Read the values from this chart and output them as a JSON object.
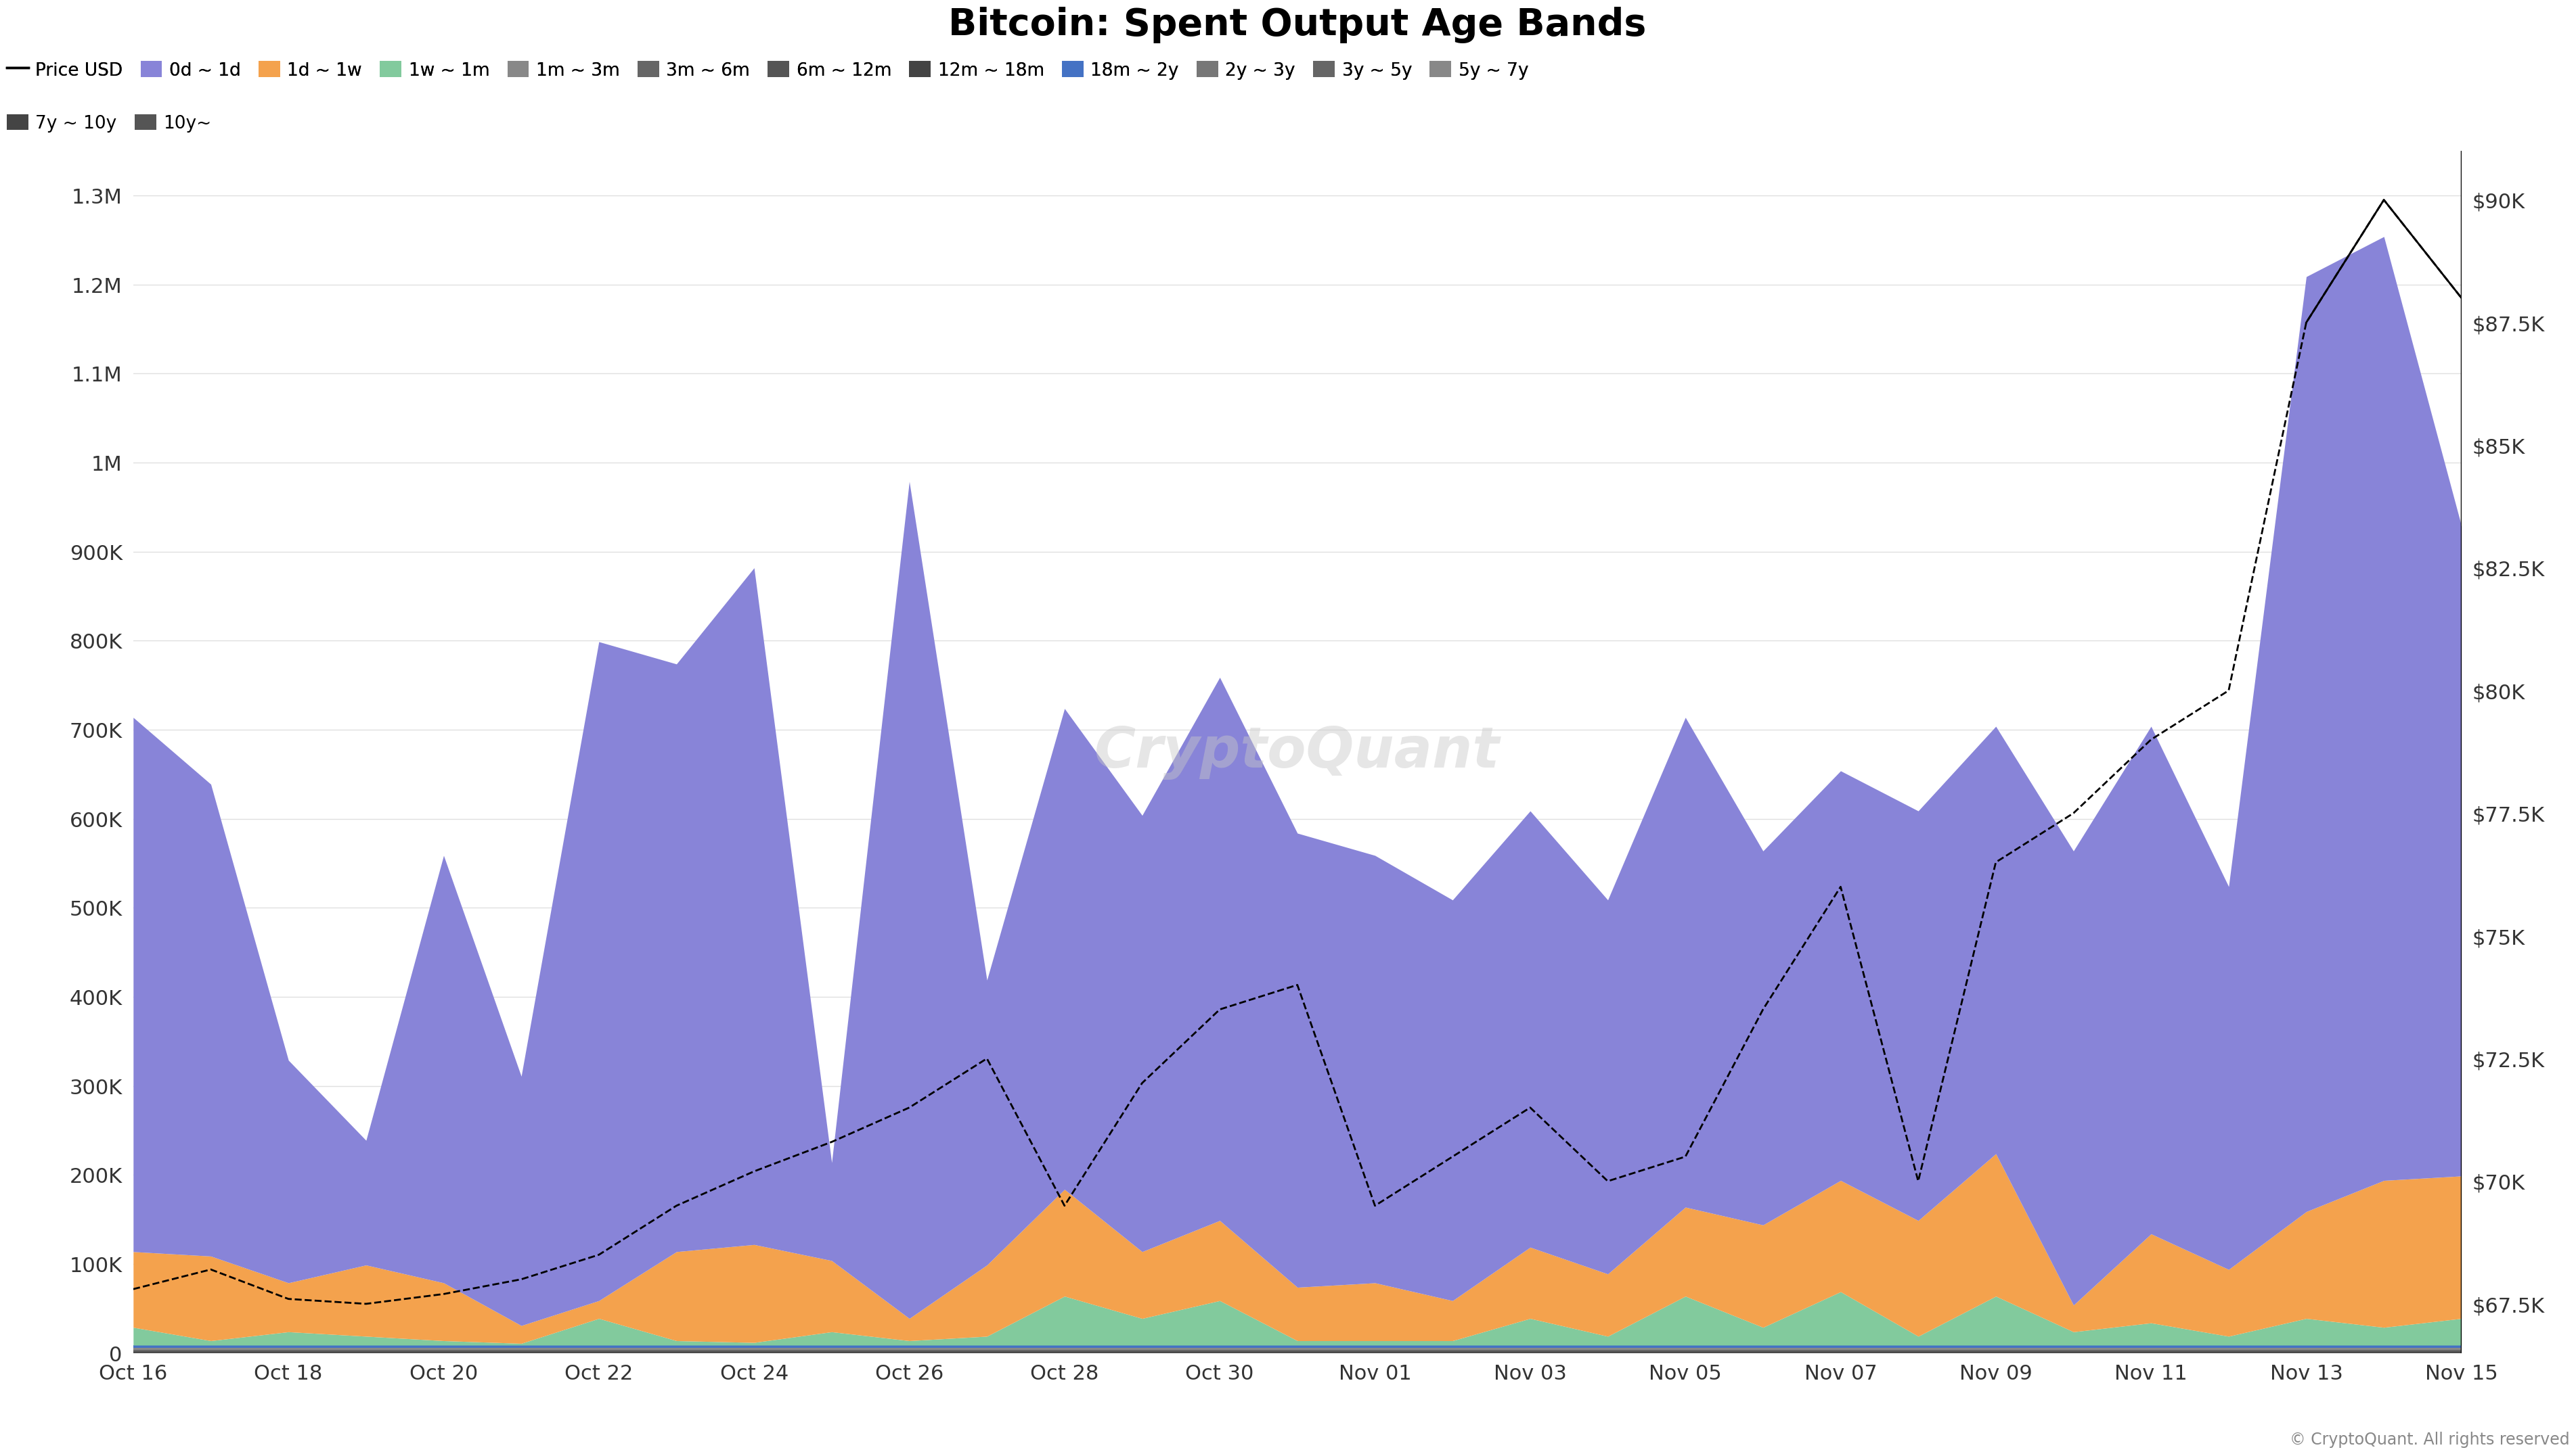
{
  "title": "Bitcoin: Spent Output Age Bands",
  "background_color": "#ffffff",
  "watermark": "CryptoQuant",
  "copyright": "© CryptoQuant. All rights reserved",
  "x_labels": [
    "Oct 16",
    "Oct 18",
    "Oct 20",
    "Oct 22",
    "Oct 24",
    "Oct 26",
    "Oct 28",
    "Oct 30",
    "Nov 01",
    "Nov 03",
    "Nov 05",
    "Nov 07",
    "Nov 09",
    "Nov 11",
    "Nov 13",
    "Nov 15"
  ],
  "n_points": 31,
  "yleft_max": 1350000,
  "yright_min": 66500,
  "yright_max": 91000,
  "legend_items": [
    {
      "label": "Price USD",
      "color": "#000000",
      "type": "line"
    },
    {
      "label": "0d ~ 1d",
      "color": "#8884d8",
      "type": "area"
    },
    {
      "label": "1d ~ 1w",
      "color": "#f4a24d",
      "type": "area"
    },
    {
      "label": "1w ~ 1m",
      "color": "#82ca9d",
      "type": "area"
    },
    {
      "label": "1m ~ 3m",
      "color": "#888888",
      "type": "area"
    },
    {
      "label": "3m ~ 6m",
      "color": "#666666",
      "type": "area"
    },
    {
      "label": "6m ~ 12m",
      "color": "#555555",
      "type": "area"
    },
    {
      "label": "12m ~ 18m",
      "color": "#444444",
      "type": "area"
    },
    {
      "label": "18m ~ 2y",
      "color": "#4472c4",
      "type": "area"
    },
    {
      "label": "2y ~ 3y",
      "color": "#777777",
      "type": "area"
    },
    {
      "label": "3y ~ 5y",
      "color": "#666666",
      "type": "area"
    },
    {
      "label": "5y ~ 7y",
      "color": "#888888",
      "type": "area"
    },
    {
      "label": "7y ~ 10y",
      "color": "#444444",
      "type": "area"
    },
    {
      "label": "10y~",
      "color": "#555555",
      "type": "area"
    }
  ],
  "price_line": [
    67800,
    68200,
    67600,
    67500,
    67700,
    68000,
    68500,
    69500,
    70200,
    70800,
    71500,
    72500,
    69500,
    72000,
    73500,
    74000,
    69500,
    70500,
    71500,
    70000,
    70500,
    73500,
    76000,
    70000,
    76500,
    77500,
    79000,
    80000,
    87500,
    90000,
    88000
  ],
  "band_18m2y": [
    3000,
    3000,
    3000,
    3000,
    3000,
    3000,
    3000,
    3000,
    3000,
    3000,
    3000,
    3000,
    3000,
    3000,
    3000,
    3000,
    3000,
    3000,
    3000,
    3000,
    3000,
    3000,
    3000,
    3000,
    3000,
    3000,
    3000,
    3000,
    3000,
    3000,
    3000
  ],
  "band_1w1m": [
    20000,
    5000,
    15000,
    10000,
    5000,
    2000,
    30000,
    5000,
    3000,
    15000,
    5000,
    10000,
    55000,
    30000,
    50000,
    5000,
    5000,
    5000,
    30000,
    10000,
    55000,
    20000,
    60000,
    10000,
    55000,
    15000,
    25000,
    10000,
    30000,
    20000,
    30000
  ],
  "band_1d1w": [
    85000,
    95000,
    55000,
    80000,
    65000,
    20000,
    20000,
    100000,
    110000,
    80000,
    25000,
    80000,
    120000,
    75000,
    90000,
    60000,
    65000,
    45000,
    80000,
    70000,
    100000,
    115000,
    125000,
    130000,
    160000,
    30000,
    100000,
    75000,
    120000,
    165000,
    160000
  ],
  "band_0d1d": [
    600000,
    530000,
    250000,
    140000,
    480000,
    280000,
    740000,
    660000,
    760000,
    110000,
    940000,
    320000,
    540000,
    490000,
    610000,
    510000,
    480000,
    450000,
    490000,
    420000,
    550000,
    420000,
    460000,
    460000,
    480000,
    510000,
    570000,
    430000,
    1050000,
    1060000,
    730000
  ],
  "band_1m3m": [
    2000,
    2000,
    2000,
    2000,
    2000,
    2000,
    2000,
    2000,
    2000,
    2000,
    2000,
    2000,
    2000,
    2000,
    2000,
    2000,
    2000,
    2000,
    2000,
    2000,
    2000,
    2000,
    2000,
    2000,
    2000,
    2000,
    2000,
    2000,
    2000,
    2000,
    2000
  ],
  "band_3m6m": [
    1500,
    1500,
    1500,
    1500,
    1500,
    1500,
    1500,
    1500,
    1500,
    1500,
    1500,
    1500,
    1500,
    1500,
    1500,
    1500,
    1500,
    1500,
    1500,
    1500,
    1500,
    1500,
    1500,
    1500,
    1500,
    1500,
    1500,
    1500,
    1500,
    1500,
    1500
  ],
  "band_6m12m": [
    1000,
    1000,
    1000,
    1000,
    1000,
    1000,
    1000,
    1000,
    1000,
    1000,
    1000,
    1000,
    1000,
    1000,
    1000,
    1000,
    1000,
    1000,
    1000,
    1000,
    1000,
    1000,
    1000,
    1000,
    1000,
    1000,
    1000,
    1000,
    1000,
    1000,
    1000
  ],
  "band_12m18m": [
    500,
    500,
    500,
    500,
    500,
    500,
    500,
    500,
    500,
    500,
    500,
    500,
    500,
    500,
    500,
    500,
    500,
    500,
    500,
    500,
    500,
    500,
    500,
    500,
    500,
    500,
    500,
    500,
    500,
    500,
    500
  ],
  "band_2y3y": [
    300,
    300,
    300,
    300,
    300,
    300,
    300,
    300,
    300,
    300,
    300,
    300,
    300,
    300,
    300,
    300,
    300,
    300,
    300,
    300,
    300,
    300,
    300,
    300,
    300,
    300,
    300,
    300,
    300,
    300,
    300
  ],
  "band_3y5y": [
    200,
    200,
    200,
    200,
    200,
    200,
    200,
    200,
    200,
    200,
    200,
    200,
    200,
    200,
    200,
    200,
    200,
    200,
    200,
    200,
    200,
    200,
    200,
    200,
    200,
    200,
    200,
    200,
    200,
    200,
    200
  ],
  "band_5y7y": [
    100,
    100,
    100,
    100,
    100,
    100,
    100,
    100,
    100,
    100,
    100,
    100,
    100,
    100,
    100,
    100,
    100,
    100,
    100,
    100,
    100,
    100,
    100,
    100,
    100,
    100,
    100,
    100,
    100,
    100,
    100
  ],
  "band_7y10y": [
    50,
    50,
    50,
    50,
    50,
    50,
    50,
    50,
    50,
    50,
    50,
    50,
    50,
    50,
    50,
    50,
    50,
    50,
    50,
    50,
    50,
    50,
    50,
    50,
    50,
    50,
    50,
    50,
    50,
    50,
    50
  ],
  "band_10y": [
    25,
    25,
    25,
    25,
    25,
    25,
    25,
    25,
    25,
    25,
    25,
    25,
    25,
    25,
    25,
    25,
    25,
    25,
    25,
    25,
    25,
    25,
    25,
    25,
    25,
    25,
    25,
    25,
    25,
    25,
    25
  ]
}
